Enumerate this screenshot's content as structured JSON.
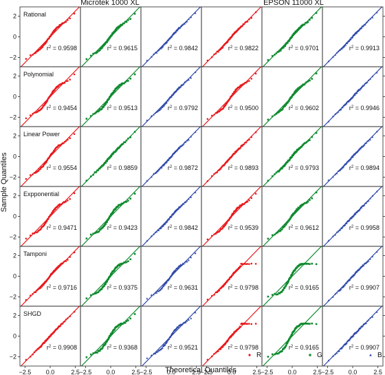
{
  "figure": {
    "ylabel": "Sample Quantiles",
    "xlabel": "Theoretical Quantiles",
    "group_titles": [
      "Microtek 1000 XL",
      "EPSON 11000 XL"
    ],
    "models": [
      "Rational",
      "Polynomial",
      "Linear Power",
      "Expponential",
      "Tamponi",
      "SHGD"
    ],
    "channels": [
      "R",
      "G",
      "B"
    ],
    "channel_colors": {
      "R": "#e8191c",
      "G": "#0e8a2e",
      "B": "#2f48a8"
    },
    "legend_markers": {
      "R": "circle",
      "G": "square",
      "B": "triangle"
    },
    "x_ticks": [
      "−2.5",
      "0.0",
      "2.5"
    ],
    "y_ticks": [
      "−2",
      "0",
      "2"
    ]
  },
  "chart_data": {
    "type": "scatter",
    "subtype": "qq-plot-grid",
    "xlabel": "Theoretical Quantiles",
    "ylabel": "Sample Quantiles",
    "xlim": [
      -3.0,
      3.0
    ],
    "ylim": [
      -2.9,
      2.9
    ],
    "x_ticks": [
      -2.5,
      0.0,
      2.5
    ],
    "y_ticks": [
      -2,
      0,
      2
    ],
    "columns": [
      {
        "device": "Microtek 1000 XL",
        "channel": "R"
      },
      {
        "device": "Microtek 1000 XL",
        "channel": "G"
      },
      {
        "device": "Microtek 1000 XL",
        "channel": "B"
      },
      {
        "device": "EPSON 11000 XL",
        "channel": "R"
      },
      {
        "device": "EPSON 11000 XL",
        "channel": "G"
      },
      {
        "device": "EPSON 11000 XL",
        "channel": "B"
      }
    ],
    "rows": [
      {
        "model": "Rational",
        "r2": [
          "0.9598",
          "0.9615",
          "0.9842",
          "0.9822",
          "0.9701",
          "0.9913"
        ]
      },
      {
        "model": "Polynomial",
        "r2": [
          "0.9454",
          "0.9513",
          "0.9792",
          "0.9500",
          "0.9602",
          "0.9946"
        ]
      },
      {
        "model": "Linear Power",
        "r2": [
          "0.9554",
          "0.9859",
          "0.9872",
          "0.9893",
          "0.9793",
          "0.9894"
        ]
      },
      {
        "model": "Expponential",
        "r2": [
          "0.9471",
          "0.9423",
          "0.9842",
          "0.9539",
          "0.9612",
          "0.9958"
        ]
      },
      {
        "model": "Tamponi",
        "r2": [
          "0.9716",
          "0.9375",
          "0.9631",
          "0.9798",
          "0.9165",
          "0.9907"
        ]
      },
      {
        "model": "SHGD",
        "r2": [
          "0.9908",
          "0.9368",
          "0.9521",
          "0.9798",
          "0.9165",
          "0.9907"
        ]
      }
    ],
    "reference_line": "y = x",
    "legend": [
      {
        "label": "R",
        "marker": "circle",
        "color": "#e8191c"
      },
      {
        "label": "G",
        "marker": "square",
        "color": "#0e8a2e"
      },
      {
        "label": "B",
        "marker": "triangle",
        "color": "#2f48a8"
      }
    ],
    "legend_placement": "bottom row, lower-right of each EPSON panel",
    "grid": false
  }
}
